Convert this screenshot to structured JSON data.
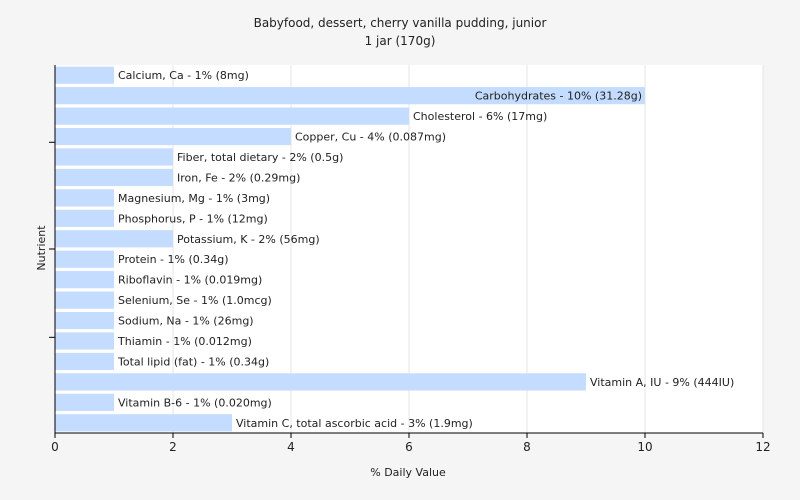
{
  "chart_data": {
    "type": "bar",
    "orientation": "horizontal",
    "title": "Babyfood, dessert, cherry vanilla pudding, junior",
    "subtitle": "1 jar (170g)",
    "xlabel": "% Daily Value",
    "ylabel": "Nutrient",
    "xlim": [
      0,
      12
    ],
    "xticks": [
      0,
      2,
      4,
      6,
      8,
      10,
      12
    ],
    "grid": true,
    "legend": "none",
    "bar_color": "#c4dcff",
    "categories": [
      "Calcium, Ca",
      "Carbohydrates",
      "Cholesterol",
      "Copper, Cu",
      "Fiber, total dietary",
      "Iron, Fe",
      "Magnesium, Mg",
      "Phosphorus, P",
      "Potassium, K",
      "Protein",
      "Riboflavin",
      "Selenium, Se",
      "Sodium, Na",
      "Thiamin",
      "Total lipid (fat)",
      "Vitamin A, IU",
      "Vitamin B-6",
      "Vitamin C, total ascorbic acid"
    ],
    "values": [
      1,
      10,
      6,
      4,
      2,
      2,
      1,
      1,
      2,
      1,
      1,
      1,
      1,
      1,
      1,
      9,
      1,
      3
    ],
    "labels": [
      "Calcium, Ca - 1% (8mg)",
      "Carbohydrates - 10% (31.28g)",
      "Cholesterol - 6% (17mg)",
      "Copper, Cu - 4% (0.087mg)",
      "Fiber, total dietary - 2% (0.5g)",
      "Iron, Fe - 2% (0.29mg)",
      "Magnesium, Mg - 1% (3mg)",
      "Phosphorus, P - 1% (12mg)",
      "Potassium, K - 2% (56mg)",
      "Protein - 1% (0.34g)",
      "Riboflavin - 1% (0.019mg)",
      "Selenium, Se - 1% (1.0mcg)",
      "Sodium, Na - 1% (26mg)",
      "Thiamin - 1% (0.012mg)",
      "Total lipid (fat) - 1% (0.34g)",
      "Vitamin A, IU - 9% (444IU)",
      "Vitamin B-6 - 1% (0.020mg)",
      "Vitamin C, total ascorbic acid - 3% (1.9mg)"
    ]
  }
}
